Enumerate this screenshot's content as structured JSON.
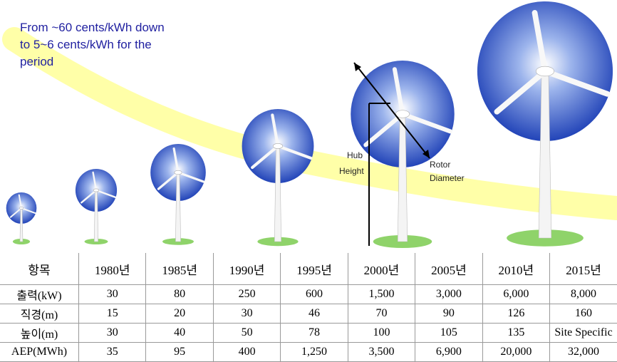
{
  "annotation": {
    "lines": [
      "From ~60 cents/kWh down",
      "to 5~6 cents/kWh for the",
      "period"
    ]
  },
  "labels": {
    "hub_height": [
      "Hub",
      "Height"
    ],
    "rotor_diameter": [
      "Rotor",
      "Diameter"
    ]
  },
  "table": {
    "header": [
      "항목",
      "1980년",
      "1985년",
      "1990년",
      "1995년",
      "2000년",
      "2005년",
      "2010년",
      "2015년"
    ],
    "rows": [
      [
        "출력(kW)",
        "30",
        "80",
        "250",
        "600",
        "1,500",
        "3,000",
        "6,000",
        "8,000"
      ],
      [
        "직경(m)",
        "15",
        "20",
        "30",
        "46",
        "70",
        "90",
        "126",
        "160"
      ],
      [
        "높이(m)",
        "30",
        "40",
        "50",
        "78",
        "100",
        "105",
        "135",
        "Site Specific"
      ],
      [
        "AEP(MWh)",
        "35",
        "95",
        "400",
        "1,250",
        "3,500",
        "6,900",
        "20,000",
        "32,000"
      ]
    ]
  }
}
